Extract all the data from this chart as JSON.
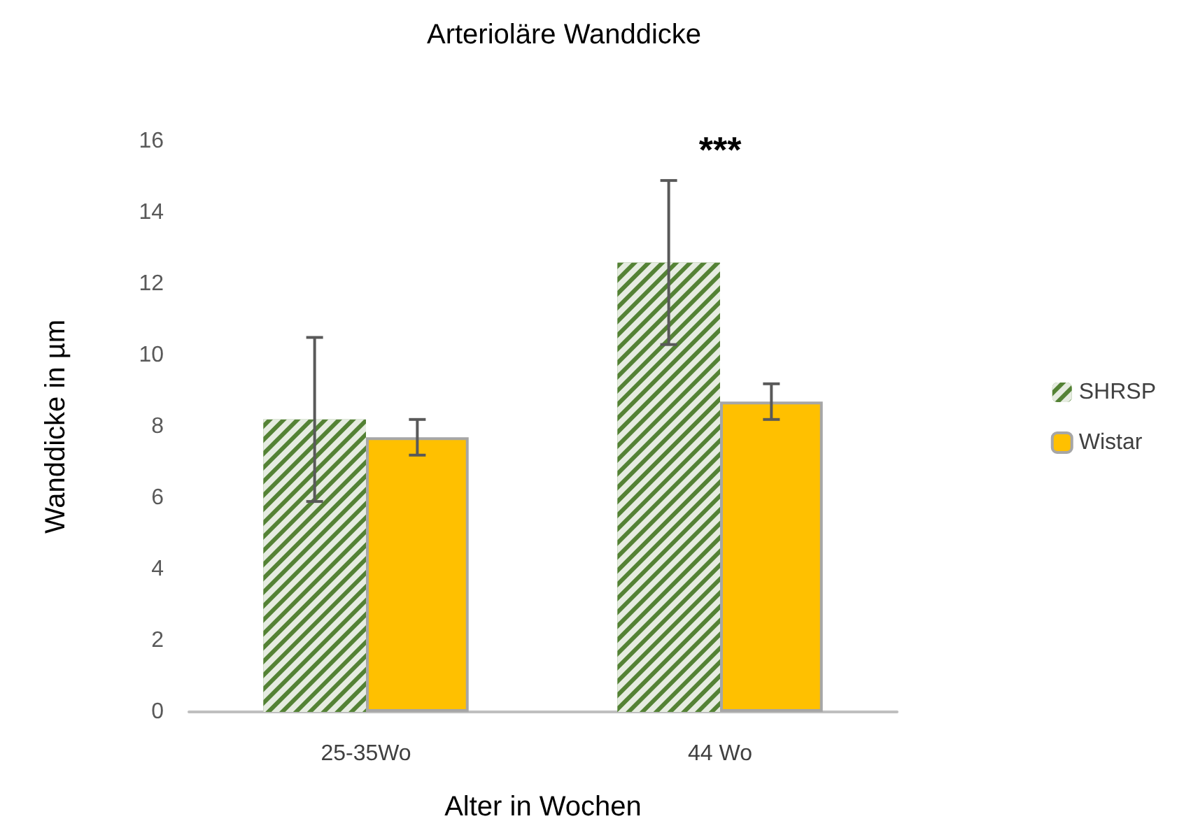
{
  "chart_data": {
    "type": "bar",
    "title": "Arterioläre Wanddicke",
    "xlabel": "Alter in Wochen",
    "ylabel": "Wanddicke in µm",
    "categories": [
      "25-35Wo",
      "44 Wo"
    ],
    "series": [
      {
        "name": "SHRSP",
        "color": "#548235",
        "values": [
          8.2,
          12.6
        ],
        "errors": [
          2.3,
          2.3
        ]
      },
      {
        "name": "Wistar",
        "color": "#ffc000",
        "values": [
          7.7,
          8.7
        ],
        "errors": [
          0.5,
          0.5
        ]
      }
    ],
    "ylim": [
      0,
      16
    ],
    "yticks": [
      0,
      2,
      4,
      6,
      8,
      10,
      12,
      14,
      16
    ],
    "grid": false,
    "legend": "right",
    "annotations": [
      "***"
    ]
  }
}
